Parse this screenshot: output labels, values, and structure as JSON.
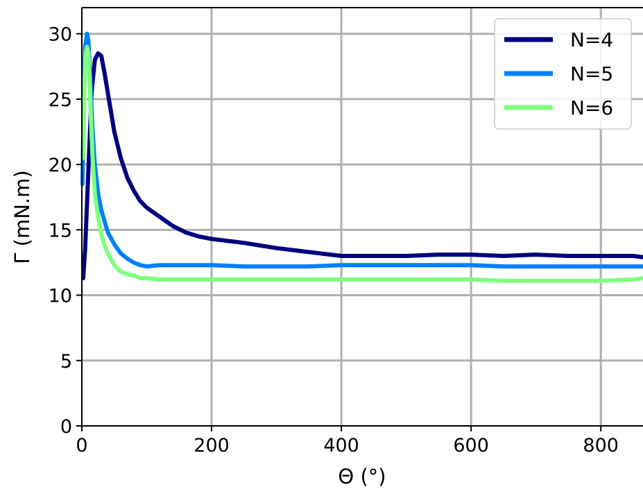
{
  "chart_data": {
    "type": "line",
    "title": "",
    "xlabel": "Θ (°)",
    "ylabel": "Γ (mN.m)",
    "xlim": [
      0,
      865
    ],
    "ylim": [
      0,
      32
    ],
    "xticks": [
      0,
      200,
      400,
      600,
      800
    ],
    "yticks": [
      0,
      5,
      10,
      15,
      20,
      25,
      30
    ],
    "grid": true,
    "legend_position": "top-right",
    "series": [
      {
        "name": "N=4",
        "color": "#000080",
        "x": [
          2,
          5,
          10,
          15,
          20,
          25,
          30,
          35,
          40,
          45,
          50,
          60,
          70,
          80,
          90,
          100,
          120,
          140,
          160,
          180,
          200,
          250,
          300,
          350,
          400,
          450,
          500,
          550,
          600,
          650,
          700,
          750,
          800,
          850,
          865
        ],
        "y": [
          11.3,
          13.5,
          19.5,
          25.5,
          28.0,
          28.5,
          28.3,
          27.0,
          25.5,
          24.0,
          22.5,
          20.5,
          19.0,
          18.0,
          17.2,
          16.7,
          16.0,
          15.3,
          14.8,
          14.5,
          14.3,
          14.0,
          13.6,
          13.3,
          13.0,
          13.0,
          13.0,
          13.1,
          13.1,
          13.0,
          13.1,
          13.0,
          13.0,
          13.0,
          12.9
        ]
      },
      {
        "name": "N=5",
        "color": "#0080ff",
        "x": [
          1,
          3,
          5,
          8,
          10,
          13,
          16,
          20,
          25,
          30,
          40,
          50,
          60,
          70,
          80,
          90,
          100,
          120,
          150,
          200,
          250,
          300,
          350,
          400,
          450,
          500,
          550,
          600,
          650,
          700,
          750,
          800,
          850,
          865
        ],
        "y": [
          18.5,
          25.0,
          29.0,
          30.0,
          29.5,
          26.5,
          23.0,
          20.0,
          17.8,
          16.5,
          14.8,
          13.9,
          13.2,
          12.8,
          12.5,
          12.3,
          12.2,
          12.3,
          12.3,
          12.3,
          12.2,
          12.2,
          12.2,
          12.3,
          12.3,
          12.3,
          12.3,
          12.3,
          12.2,
          12.2,
          12.2,
          12.2,
          12.2,
          12.2
        ]
      },
      {
        "name": "N=6",
        "color": "#80ff80",
        "x": [
          2,
          4,
          6,
          8,
          10,
          12,
          14,
          17,
          20,
          25,
          30,
          35,
          40,
          50,
          60,
          70,
          80,
          90,
          100,
          120,
          150,
          200,
          250,
          300,
          350,
          400,
          450,
          500,
          550,
          600,
          650,
          700,
          750,
          800,
          850,
          865
        ],
        "y": [
          20.5,
          26.0,
          28.5,
          29.0,
          28.5,
          26.5,
          23.5,
          20.0,
          17.8,
          16.0,
          14.6,
          13.8,
          13.2,
          12.3,
          11.8,
          11.6,
          11.5,
          11.3,
          11.3,
          11.2,
          11.2,
          11.2,
          11.2,
          11.2,
          11.2,
          11.2,
          11.2,
          11.2,
          11.2,
          11.2,
          11.1,
          11.1,
          11.1,
          11.1,
          11.2,
          11.3
        ]
      }
    ]
  }
}
